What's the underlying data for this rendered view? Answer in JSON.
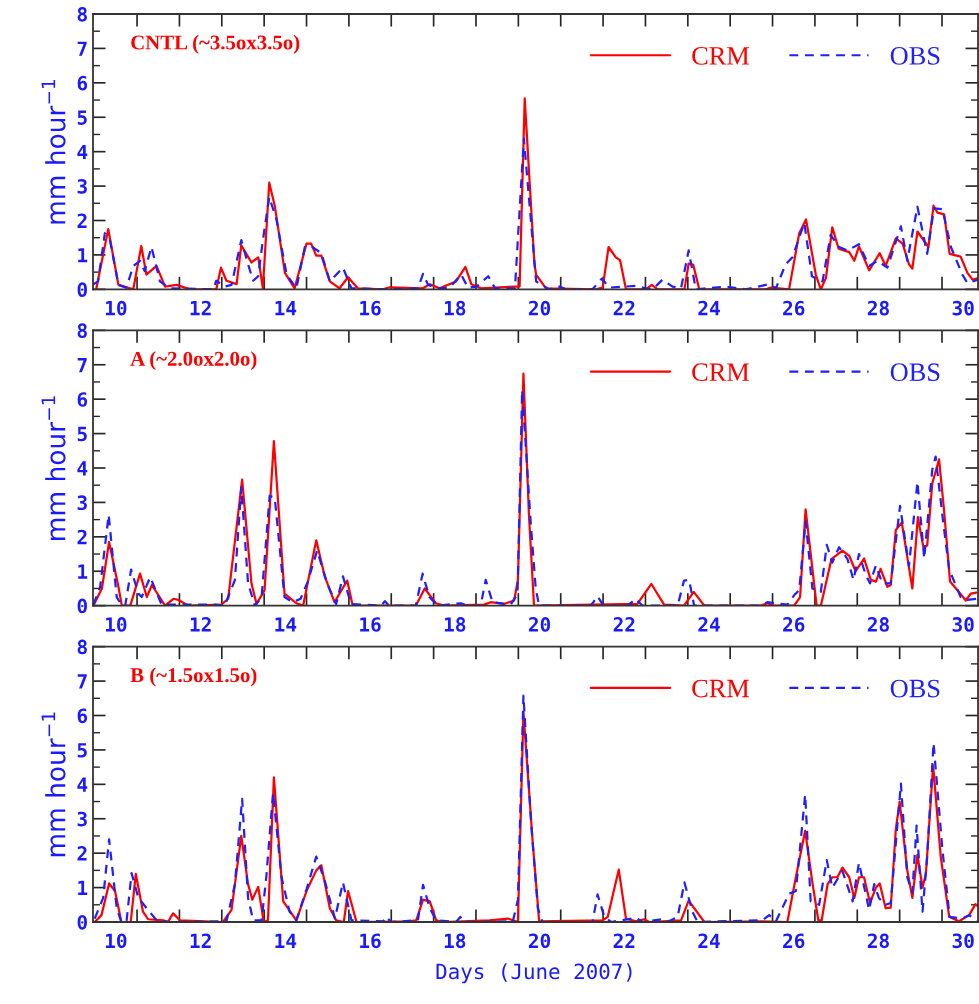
{
  "chart_data": [
    {
      "type": "line",
      "title": "CNTL (~3.5ox3.5o)",
      "ylabel": "mm hour$^{−1}$",
      "xlim": [
        9.46,
        30.35
      ],
      "ylim": [
        0,
        8
      ],
      "yticks": [
        0,
        1,
        2,
        3,
        4,
        5,
        6,
        7,
        8
      ],
      "xticks": [
        10,
        12,
        14,
        16,
        18,
        20,
        22,
        24,
        26,
        28,
        30,
        {
          "value": 10.5,
          "label": null
        },
        {
          "value": 11.5,
          "label": null
        },
        {
          "value": 12.5,
          "label": null
        },
        {
          "value": 13.5,
          "label": null
        },
        {
          "value": 14.5,
          "label": null
        },
        {
          "value": 15.5,
          "label": null
        },
        {
          "value": 16.5,
          "label": null
        },
        {
          "value": 17.5,
          "label": null
        },
        {
          "value": 18.5,
          "label": null
        },
        {
          "value": 19.5,
          "label": null
        },
        {
          "value": 20.5,
          "label": null
        },
        {
          "value": 21.5,
          "label": null
        },
        {
          "value": 22.5,
          "label": null
        },
        {
          "value": 23.5,
          "label": null
        },
        {
          "value": 24.5,
          "label": null
        },
        {
          "value": 25.5,
          "label": null
        },
        {
          "value": 26.5,
          "label": null
        },
        {
          "value": 27.5,
          "label": null
        },
        {
          "value": 28.5,
          "label": null
        },
        {
          "value": 29.5,
          "label": null
        }
      ],
      "legend": "top right",
      "grid": false,
      "series": [
        {
          "name": "CRM",
          "color": "#ff0000",
          "line_style": "solid",
          "x": [
            9.54,
            9.82,
            10.06,
            10.41,
            10.6,
            10.72,
            10.96,
            11.16,
            11.43,
            11.75,
            12.37,
            12.48,
            12.61,
            12.85,
            12.96,
            13.2,
            13.36,
            13.47,
            13.62,
            13.75,
            13.99,
            14.22,
            14.5,
            14.61,
            14.73,
            14.85,
            15.05,
            15.28,
            15.48,
            15.71,
            16.31,
            16.46,
            17.25,
            17.41,
            17.64,
            18.03,
            18.25,
            18.39,
            18.62,
            19.45,
            19.53,
            19.65,
            19.88,
            19.92,
            20.15,
            21.33,
            21.49,
            21.63,
            21.8,
            21.9,
            22.04,
            22.51,
            22.65,
            22.79,
            23.42,
            23.52,
            23.63,
            23.77,
            25.34,
            25.46,
            25.89,
            26.13,
            26.29,
            26.52,
            26.64,
            26.76,
            26.91,
            27.06,
            27.31,
            27.43,
            27.54,
            27.78,
            28.03,
            28.17,
            28.41,
            28.57,
            28.72,
            28.8,
            28.92,
            29.18,
            29.3,
            29.39,
            29.55,
            29.68,
            29.94,
            30.1,
            30.22,
            30.35
          ],
          "values": [
            0.03,
            1.75,
            0.13,
            0,
            1.26,
            0.43,
            0.68,
            0.08,
            0.13,
            0,
            0,
            0.63,
            0.25,
            0.15,
            1.28,
            0.78,
            0.93,
            0.03,
            3.1,
            2.43,
            0.48,
            0.03,
            1.33,
            1.33,
            0.98,
            0.98,
            0.23,
            0.03,
            0.35,
            0.03,
            0,
            0.06,
            0.03,
            0.15,
            0.03,
            0.23,
            0.65,
            0.15,
            0.03,
            0.08,
            0.08,
            5.55,
            0.73,
            0.43,
            0.03,
            0,
            0.05,
            1.23,
            0.93,
            0.85,
            0,
            0,
            0.13,
            0,
            0,
            0.75,
            0.71,
            0,
            0,
            0.05,
            0,
            1.63,
            2.03,
            0.43,
            0,
            0.33,
            1.8,
            1.18,
            1.08,
            0.83,
            1.25,
            0.55,
            1.05,
            0.68,
            1.48,
            1.33,
            0.73,
            0.6,
            1.68,
            1.23,
            2.43,
            2.23,
            2.18,
            1.03,
            0.95,
            0.48,
            0.28,
            0.33
          ]
        },
        {
          "name": "OBS",
          "color": "#2020ff",
          "line_style": "dashed",
          "x": [
            9.47,
            9.58,
            9.74,
            9.86,
            10.06,
            10.25,
            10.41,
            10.57,
            10.68,
            10.84,
            11.04,
            11.27,
            12.3,
            12.37,
            12.57,
            12.73,
            12.96,
            13.12,
            13.24,
            13.36,
            13.47,
            13.62,
            13.79,
            14.03,
            14.26,
            14.46,
            14.61,
            14.85,
            15.05,
            15.36,
            15.56,
            16.31,
            17.13,
            17.25,
            17.37,
            17.6,
            17.88,
            18.15,
            18.31,
            18.51,
            18.79,
            18.95,
            19.42,
            19.63,
            19.92,
            20.23,
            20.47,
            20.62,
            21.25,
            21.47,
            21.65,
            22.28,
            22.51,
            22.67,
            22.9,
            23.14,
            23.34,
            23.52,
            23.69,
            24.4,
            24.87,
            25.42,
            25.58,
            25.81,
            25.97,
            26.25,
            26.43,
            26.68,
            26.87,
            27.07,
            27.27,
            27.54,
            27.78,
            27.98,
            28.21,
            28.53,
            28.68,
            28.92,
            29.15,
            29.31,
            29.51,
            29.71,
            29.98,
            30.1,
            30.35
          ],
          "values": [
            0.15,
            0.23,
            1.63,
            1.43,
            0.13,
            0.05,
            0.68,
            0.83,
            0.53,
            1.23,
            0.23,
            0.03,
            0,
            0.25,
            0.08,
            0.13,
            1.43,
            0.73,
            0.25,
            0.38,
            1.43,
            2.68,
            2.03,
            0.43,
            0.03,
            1.23,
            1.25,
            1.05,
            0.23,
            0.63,
            0.03,
            0,
            0.03,
            0.45,
            0.13,
            0.03,
            0.05,
            0.43,
            0.05,
            0.08,
            0.38,
            0.03,
            0.03,
            4.38,
            0.23,
            0,
            0.08,
            0,
            0,
            0.31,
            0.05,
            0.1,
            0.03,
            0,
            0.28,
            0.08,
            0.03,
            1.13,
            0,
            0.08,
            0,
            0.15,
            0.03,
            0.73,
            0.93,
            1.93,
            0.38,
            0.23,
            1.58,
            1.23,
            1.13,
            1.31,
            0.68,
            0.83,
            0.63,
            1.83,
            0.83,
            2.4,
            1.03,
            2.35,
            2.33,
            1.23,
            0.43,
            0.18,
            0.28
          ]
        }
      ]
    },
    {
      "type": "line",
      "title": "A (~2.0ox2.0o)",
      "ylabel": "mm hour$^{−1}$",
      "xlim": [
        9.46,
        30.35
      ],
      "ylim": [
        0,
        8
      ],
      "yticks": [
        0,
        1,
        2,
        3,
        4,
        5,
        6,
        7,
        8
      ],
      "xticks": [
        10,
        12,
        14,
        16,
        18,
        20,
        22,
        24,
        26,
        28,
        30,
        {
          "value": 10.5,
          "label": null
        },
        {
          "value": 11.5,
          "label": null
        },
        {
          "value": 12.5,
          "label": null
        },
        {
          "value": 13.5,
          "label": null
        },
        {
          "value": 14.5,
          "label": null
        },
        {
          "value": 15.5,
          "label": null
        },
        {
          "value": 16.5,
          "label": null
        },
        {
          "value": 17.5,
          "label": null
        },
        {
          "value": 18.5,
          "label": null
        },
        {
          "value": 19.5,
          "label": null
        },
        {
          "value": 20.5,
          "label": null
        },
        {
          "value": 21.5,
          "label": null
        },
        {
          "value": 22.5,
          "label": null
        },
        {
          "value": 23.5,
          "label": null
        },
        {
          "value": 24.5,
          "label": null
        },
        {
          "value": 25.5,
          "label": null
        },
        {
          "value": 26.5,
          "label": null
        },
        {
          "value": 27.5,
          "label": null
        },
        {
          "value": 28.5,
          "label": null
        },
        {
          "value": 29.5,
          "label": null
        }
      ],
      "legend": "top right",
      "grid": false,
      "series": [
        {
          "name": "CRM",
          "color": "#ff0000",
          "line_style": "solid",
          "x": [
            9.47,
            9.67,
            9.84,
            10.06,
            10.14,
            10.34,
            10.57,
            10.73,
            10.85,
            11.16,
            11.36,
            11.47,
            11.71,
            12.49,
            12.65,
            12.98,
            13.2,
            13.32,
            13.51,
            13.73,
            13.98,
            14.26,
            14.42,
            14.73,
            14.93,
            15.16,
            15.46,
            15.59,
            17.08,
            17.29,
            17.55,
            17.75,
            18.69,
            18.85,
            19.16,
            19.4,
            19.49,
            19.62,
            19.75,
            19.87,
            22.31,
            22.64,
            22.94,
            23.41,
            23.64,
            23.89,
            25.22,
            25.38,
            25.54,
            26.01,
            26.15,
            26.28,
            26.54,
            26.64,
            26.89,
            27.15,
            27.31,
            27.46,
            27.66,
            27.82,
            27.94,
            28.05,
            28.21,
            28.29,
            28.41,
            28.55,
            28.8,
            28.93,
            29.06,
            29.15,
            29.27,
            29.43,
            29.55,
            29.69,
            29.9,
            30.06,
            30.18,
            30.31
          ],
          "values": [
            0,
            0.5,
            1.85,
            0.55,
            0,
            0,
            0.93,
            0.25,
            0.6,
            0,
            0.2,
            0.17,
            0,
            0.03,
            0.2,
            3.66,
            0.65,
            0.05,
            0.45,
            4.78,
            0.35,
            0.07,
            0,
            1.9,
            0.85,
            0.1,
            0.73,
            0,
            0,
            0.5,
            0.07,
            0,
            0.03,
            0.1,
            0.05,
            0.15,
            0.75,
            6.74,
            2.64,
            0,
            0.05,
            0.63,
            0.03,
            0,
            0.4,
            0,
            0,
            0.07,
            0,
            0,
            0.25,
            2.8,
            0,
            0,
            1.35,
            1.6,
            1.45,
            1.0,
            1.37,
            0.75,
            0.7,
            1.07,
            0.55,
            0.6,
            2.2,
            2.42,
            0.5,
            2.57,
            1.7,
            1.75,
            3.55,
            4.25,
            2.75,
            0.7,
            0.4,
            0.15,
            0.35,
            0.38
          ]
        },
        {
          "name": "OBS",
          "color": "#2020ff",
          "line_style": "dashed",
          "x": [
            9.47,
            9.63,
            9.83,
            10.02,
            10.14,
            10.22,
            10.36,
            10.53,
            10.61,
            10.81,
            11.08,
            12.34,
            12.57,
            12.81,
            12.96,
            13.12,
            13.28,
            13.44,
            13.63,
            13.75,
            13.98,
            14.18,
            14.36,
            14.53,
            14.75,
            15.0,
            15.2,
            15.36,
            15.55,
            16.26,
            16.35,
            16.45,
            17.08,
            17.24,
            17.4,
            17.59,
            18.14,
            18.3,
            18.61,
            18.73,
            18.89,
            19.32,
            19.48,
            19.59,
            19.79,
            19.91,
            19.99,
            21.21,
            21.37,
            21.51,
            22.08,
            22.27,
            22.43,
            23.26,
            23.41,
            23.53,
            23.65,
            25.22,
            25.38,
            25.85,
            26.01,
            26.13,
            26.28,
            26.44,
            26.64,
            26.78,
            26.91,
            27.07,
            27.27,
            27.41,
            27.54,
            27.7,
            27.8,
            27.94,
            28.09,
            28.29,
            28.51,
            28.72,
            28.92,
            29.08,
            29.27,
            29.35,
            29.53,
            29.67,
            29.94,
            30.1,
            30.31
          ],
          "values": [
            0.03,
            0.55,
            2.64,
            0.25,
            0,
            0,
            1.05,
            0.35,
            0.25,
            0.83,
            0.03,
            0.03,
            0,
            0.75,
            3.44,
            0.65,
            0,
            0.25,
            3.19,
            3.14,
            0.25,
            0.1,
            0.2,
            0.7,
            1.6,
            0.6,
            0.05,
            0.85,
            0.05,
            0,
            0.13,
            0,
            0,
            0.93,
            0.25,
            0,
            0.07,
            0,
            0,
            0.75,
            0.1,
            0.03,
            0.35,
            6.27,
            2.44,
            0.5,
            0,
            0,
            0.27,
            0,
            0,
            0.2,
            0,
            0,
            0.73,
            0.75,
            0,
            0,
            0.1,
            0.03,
            0.3,
            0.45,
            2.45,
            0.5,
            0.4,
            1.77,
            1.25,
            1.7,
            1.35,
            0.75,
            1.5,
            0.9,
            0.65,
            1.17,
            0.65,
            0.65,
            2.9,
            1.15,
            3.6,
            1.37,
            3.95,
            4.33,
            2.4,
            1.05,
            0.25,
            0.17,
            0.2
          ]
        }
      ]
    },
    {
      "type": "line",
      "title": "B (~1.5ox1.5o)",
      "ylabel": "mm hour$^{−1}$",
      "xlabel": "Days (June 2007)",
      "xlim": [
        9.46,
        30.35
      ],
      "ylim": [
        0,
        8
      ],
      "yticks": [
        0,
        1,
        2,
        3,
        4,
        5,
        6,
        7,
        8
      ],
      "xticks": [
        10,
        12,
        14,
        16,
        18,
        20,
        22,
        24,
        26,
        28,
        30,
        {
          "value": 10.5,
          "label": null
        },
        {
          "value": 11.5,
          "label": null
        },
        {
          "value": 12.5,
          "label": null
        },
        {
          "value": 13.5,
          "label": null
        },
        {
          "value": 14.5,
          "label": null
        },
        {
          "value": 15.5,
          "label": null
        },
        {
          "value": 16.5,
          "label": null
        },
        {
          "value": 17.5,
          "label": null
        },
        {
          "value": 18.5,
          "label": null
        },
        {
          "value": 19.5,
          "label": null
        },
        {
          "value": 20.5,
          "label": null
        },
        {
          "value": 21.5,
          "label": null
        },
        {
          "value": 22.5,
          "label": null
        },
        {
          "value": 23.5,
          "label": null
        },
        {
          "value": 24.5,
          "label": null
        },
        {
          "value": 25.5,
          "label": null
        },
        {
          "value": 26.5,
          "label": null
        },
        {
          "value": 27.5,
          "label": null
        },
        {
          "value": 28.5,
          "label": null
        },
        {
          "value": 29.5,
          "label": null
        }
      ],
      "legend": "top right",
      "grid": false,
      "series": [
        {
          "name": "CRM",
          "color": "#ff0000",
          "line_style": "solid",
          "x": [
            9.5,
            9.66,
            9.84,
            9.98,
            10.13,
            10.35,
            10.47,
            10.64,
            10.76,
            11.12,
            11.23,
            11.35,
            11.51,
            12.53,
            12.73,
            12.96,
            13.12,
            13.22,
            13.36,
            13.49,
            13.59,
            13.73,
            13.95,
            14.26,
            14.5,
            14.73,
            14.85,
            15.05,
            15.2,
            15.38,
            15.48,
            15.68,
            16.93,
            17.09,
            17.25,
            17.41,
            17.56,
            17.72,
            18.82,
            19.25,
            19.49,
            19.62,
            19.84,
            19.96,
            19.99,
            21.49,
            21.61,
            21.87,
            22.04,
            22.28,
            22.47,
            22.59,
            23.34,
            23.52,
            23.89,
            25.26,
            25.85,
            26.05,
            26.27,
            26.44,
            26.58,
            26.66,
            26.8,
            26.91,
            27.03,
            27.15,
            27.31,
            27.43,
            27.54,
            27.66,
            27.8,
            27.94,
            28.03,
            28.17,
            28.29,
            28.41,
            28.5,
            28.68,
            28.8,
            28.92,
            29.04,
            29.12,
            29.29,
            29.47,
            29.67,
            29.9,
            30.14,
            30.29,
            30.35
          ],
          "values": [
            0,
            0.2,
            1.12,
            0.9,
            0,
            0,
            1.4,
            0.3,
            0.08,
            0.05,
            0,
            0.25,
            0.05,
            0,
            0.35,
            2.5,
            1.1,
            0.65,
            1.02,
            0,
            0.05,
            4.2,
            0.6,
            0.05,
            0.9,
            1.5,
            1.65,
            0.4,
            0.05,
            0,
            0.9,
            0,
            0.02,
            0.05,
            0.65,
            0.6,
            0.05,
            0,
            0.05,
            0.1,
            0,
            6.1,
            2.3,
            0.5,
            0.02,
            0.05,
            0.15,
            1.52,
            0.1,
            0.02,
            0.08,
            0,
            0.05,
            0.62,
            0,
            0.02,
            0,
            1.3,
            2.65,
            1.15,
            0.05,
            0.05,
            1.1,
            1.3,
            1.3,
            1.58,
            1.3,
            0.7,
            1.3,
            1.3,
            0.55,
            1.0,
            1.12,
            0.4,
            0.42,
            2.7,
            3.5,
            1.5,
            0.7,
            1.95,
            1.0,
            1.4,
            4.55,
            1.9,
            0.15,
            0.02,
            0.2,
            0.52,
            0.45
          ]
        },
        {
          "name": "OBS",
          "color": "#2020ff",
          "line_style": "dashed",
          "x": [
            9.5,
            9.7,
            9.84,
            10.02,
            10.13,
            10.25,
            10.37,
            10.53,
            10.76,
            10.96,
            11.27,
            12.61,
            12.81,
            12.98,
            13.12,
            13.24,
            13.44,
            13.55,
            13.71,
            13.91,
            14.1,
            14.26,
            14.5,
            14.73,
            14.93,
            15.17,
            15.36,
            15.56,
            16.31,
            16.38,
            16.5,
            17.13,
            17.25,
            17.41,
            17.56,
            18.03,
            18.13,
            18.23,
            19.37,
            19.49,
            19.62,
            19.8,
            19.96,
            20.07,
            21.25,
            21.37,
            21.53,
            21.69,
            22.28,
            22.43,
            22.89,
            23.02,
            23.26,
            23.42,
            23.61,
            23.73,
            25.26,
            25.42,
            25.58,
            25.89,
            26.05,
            26.27,
            26.4,
            26.6,
            26.78,
            26.91,
            27.15,
            27.39,
            27.54,
            27.78,
            27.9,
            28.01,
            28.17,
            28.29,
            28.53,
            28.68,
            28.8,
            28.9,
            29.04,
            29.15,
            29.3,
            29.51,
            29.68,
            29.98,
            30.14,
            30.35
          ],
          "values": [
            0.1,
            0.7,
            2.4,
            0.4,
            0,
            0,
            1.42,
            0.7,
            0.35,
            0.05,
            0,
            0.02,
            1.1,
            3.58,
            0.7,
            0.05,
            0.05,
            1.3,
            3.75,
            1.3,
            0.3,
            0.05,
            0.95,
            1.9,
            1.2,
            0.1,
            1.15,
            0.05,
            0.02,
            0.15,
            0,
            0.05,
            1.08,
            0.4,
            0.05,
            0,
            0.15,
            0,
            0.02,
            0.65,
            6.58,
            2.9,
            0.4,
            0,
            0,
            0.8,
            0.15,
            0,
            0.12,
            0,
            0.08,
            0,
            0.15,
            1.15,
            0.3,
            0,
            0.05,
            0.2,
            0.02,
            0.82,
            0.9,
            3.7,
            0.6,
            0.5,
            1.8,
            1.0,
            1.48,
            0.6,
            1.72,
            0.35,
            1.1,
            0.7,
            0.5,
            0.55,
            4.02,
            1.3,
            0.85,
            2.8,
            0.3,
            1.9,
            5.2,
            2.1,
            0.15,
            0.1,
            0.2,
            0
          ]
        }
      ]
    }
  ]
}
